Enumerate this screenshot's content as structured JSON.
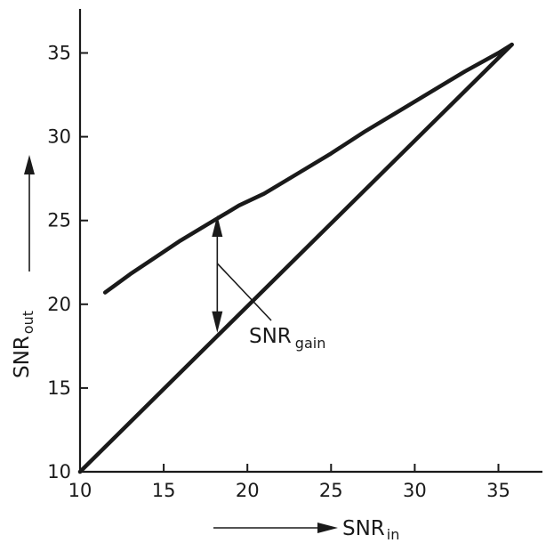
{
  "chart_data": {
    "type": "line",
    "xlabel": {
      "main": "SNR",
      "sub": "in"
    },
    "ylabel": {
      "main": "SNR",
      "sub": "out"
    },
    "xlim": [
      10,
      38
    ],
    "ylim": [
      10,
      37.5
    ],
    "x_ticks": [
      10,
      15,
      20,
      25,
      30,
      35
    ],
    "y_ticks": [
      10,
      15,
      20,
      25,
      30,
      35
    ],
    "grid": false,
    "series": [
      {
        "x": [
          11.5,
          13,
          14.5,
          16,
          17.5,
          18.5,
          19.5,
          21,
          23,
          25,
          27,
          29,
          31,
          33,
          35,
          35.8
        ],
        "values": [
          20.7,
          21.8,
          22.8,
          23.8,
          24.7,
          25.3,
          25.9,
          26.6,
          27.8,
          29.0,
          30.3,
          31.5,
          32.7,
          33.9,
          35.0,
          35.5
        ]
      },
      {
        "x": [
          10,
          35.8
        ],
        "values": [
          10,
          35.5
        ]
      }
    ],
    "annotations": [
      {
        "main": "SNR",
        "sub": "gain",
        "x": 18.2,
        "y_from": 25.3,
        "y_to": 18.3
      }
    ]
  }
}
